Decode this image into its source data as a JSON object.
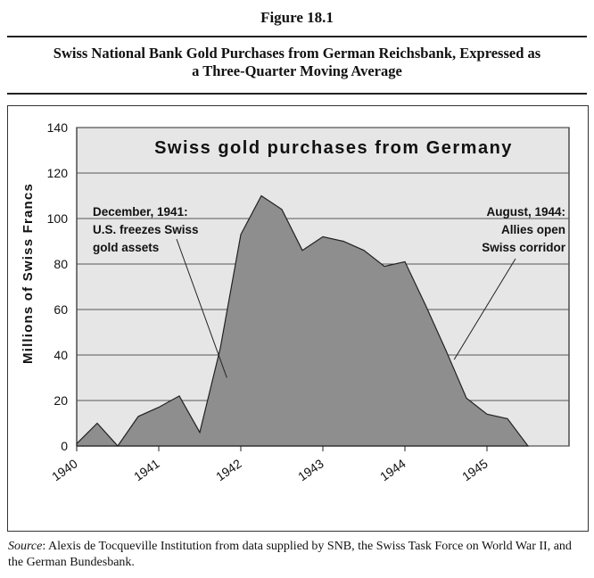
{
  "figure_label": "Figure 18.1",
  "subtitle_line1": "Swiss National Bank Gold Purchases from German Reichsbank, Expressed as",
  "subtitle_line2": "a Three-Quarter Moving Average",
  "source_label": "Source",
  "source_text": ": Alexis de Tocqueville Institution from data supplied by SNB, the Swiss Task Force on World War II, and the German Bundesbank.",
  "colors": {
    "fill": "#8e8e8e",
    "plot_bg": "#e6e6e6",
    "line": "#222222"
  },
  "chart_data": {
    "type": "area",
    "title": "Swiss gold purchases from Germany",
    "xlabel": "",
    "ylabel": "Millions of Swiss Francs",
    "ylim": [
      0,
      140
    ],
    "yticks": [
      0,
      20,
      40,
      60,
      80,
      100,
      120,
      140
    ],
    "xlim": [
      1940.0,
      1946.0
    ],
    "xtick_labels": [
      "1940",
      "1941",
      "1942",
      "1943",
      "1944",
      "1945"
    ],
    "xtick_values": [
      1940,
      1941,
      1942,
      1943,
      1944,
      1945
    ],
    "grid": true,
    "series": [
      {
        "x": [
          1940.0,
          1940.25,
          1940.5,
          1940.75,
          1941.0,
          1941.25,
          1941.5,
          1941.75,
          1942.0,
          1942.25,
          1942.5,
          1942.75,
          1943.0,
          1943.25,
          1943.5,
          1943.75,
          1944.0,
          1944.25,
          1944.5,
          1944.75,
          1945.0,
          1945.25,
          1945.5
        ],
        "y": [
          1,
          10,
          0,
          13,
          17,
          22,
          6,
          43,
          93,
          110,
          104,
          86,
          92,
          90,
          86,
          79,
          81,
          62,
          42,
          21,
          14,
          12,
          0
        ]
      }
    ],
    "annotations": [
      {
        "lines": [
          "December, 1941:",
          "U.S. freezes Swiss",
          "gold assets"
        ],
        "points_to": {
          "x": 1941.83,
          "y": 30
        }
      },
      {
        "lines": [
          "August, 1944:",
          "Allies open",
          "Swiss corridor"
        ],
        "points_to": {
          "x": 1944.6,
          "y": 38
        }
      }
    ]
  }
}
